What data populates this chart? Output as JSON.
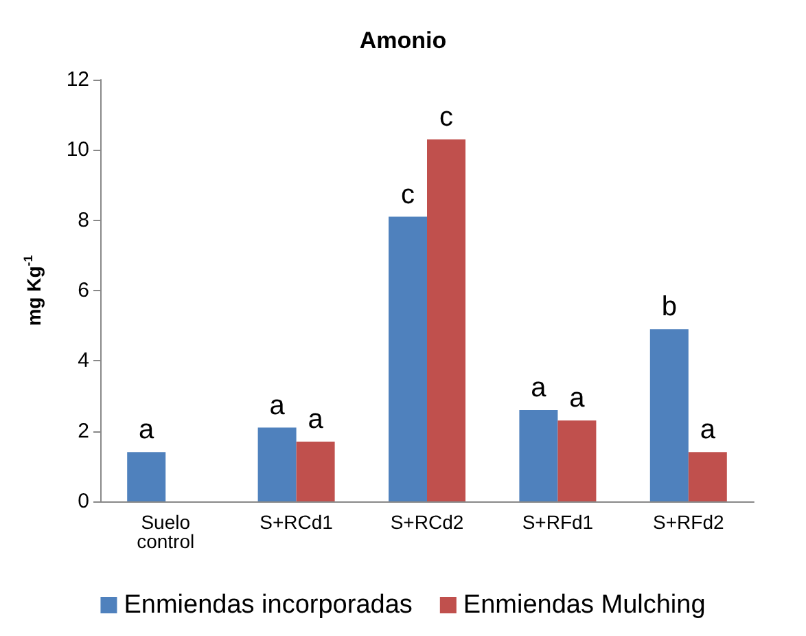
{
  "chart_data": {
    "type": "bar",
    "title": "Amonio",
    "ylabel": "mg Kg$^{-1}$",
    "categories": [
      "Suelo\ncontrol",
      "S+RCd1",
      "S+RCd2",
      "S+RFd1",
      "S+RFd2"
    ],
    "series": [
      {
        "name": "Enmiendas incorporadas",
        "color": "#4f81bd",
        "values": [
          1.4,
          2.1,
          8.1,
          2.6,
          4.9
        ]
      },
      {
        "name": "Enmiendas Mulching",
        "color": "#c0504d",
        "values": [
          null,
          1.7,
          10.3,
          2.3,
          1.4
        ]
      }
    ],
    "ylim": [
      0,
      12
    ],
    "yticks": [
      0,
      2,
      4,
      6,
      8,
      10,
      12
    ],
    "grid": false,
    "legend": "bottom",
    "annotations": [
      {
        "text": "a",
        "x": "Suelo\ncontrol",
        "y": 1.4
      },
      {
        "text": "a",
        "x": "S+RCd1",
        "y": 2.1
      },
      {
        "text": "a",
        "x": "S+RCd1",
        "y": 1.7
      },
      {
        "text": "c",
        "x": "S+RCd2",
        "y": 8.1
      },
      {
        "text": "c",
        "x": "S+RCd2",
        "y": 10.3
      },
      {
        "text": "a",
        "x": "S+RFd1",
        "y": 2.6
      },
      {
        "text": "a",
        "x": "S+RFd1",
        "y": 2.3
      },
      {
        "text": "b",
        "x": "S+RFd2",
        "y": 4.9
      },
      {
        "text": "a",
        "x": "S+RFd2",
        "y": 1.4
      }
    ]
  }
}
